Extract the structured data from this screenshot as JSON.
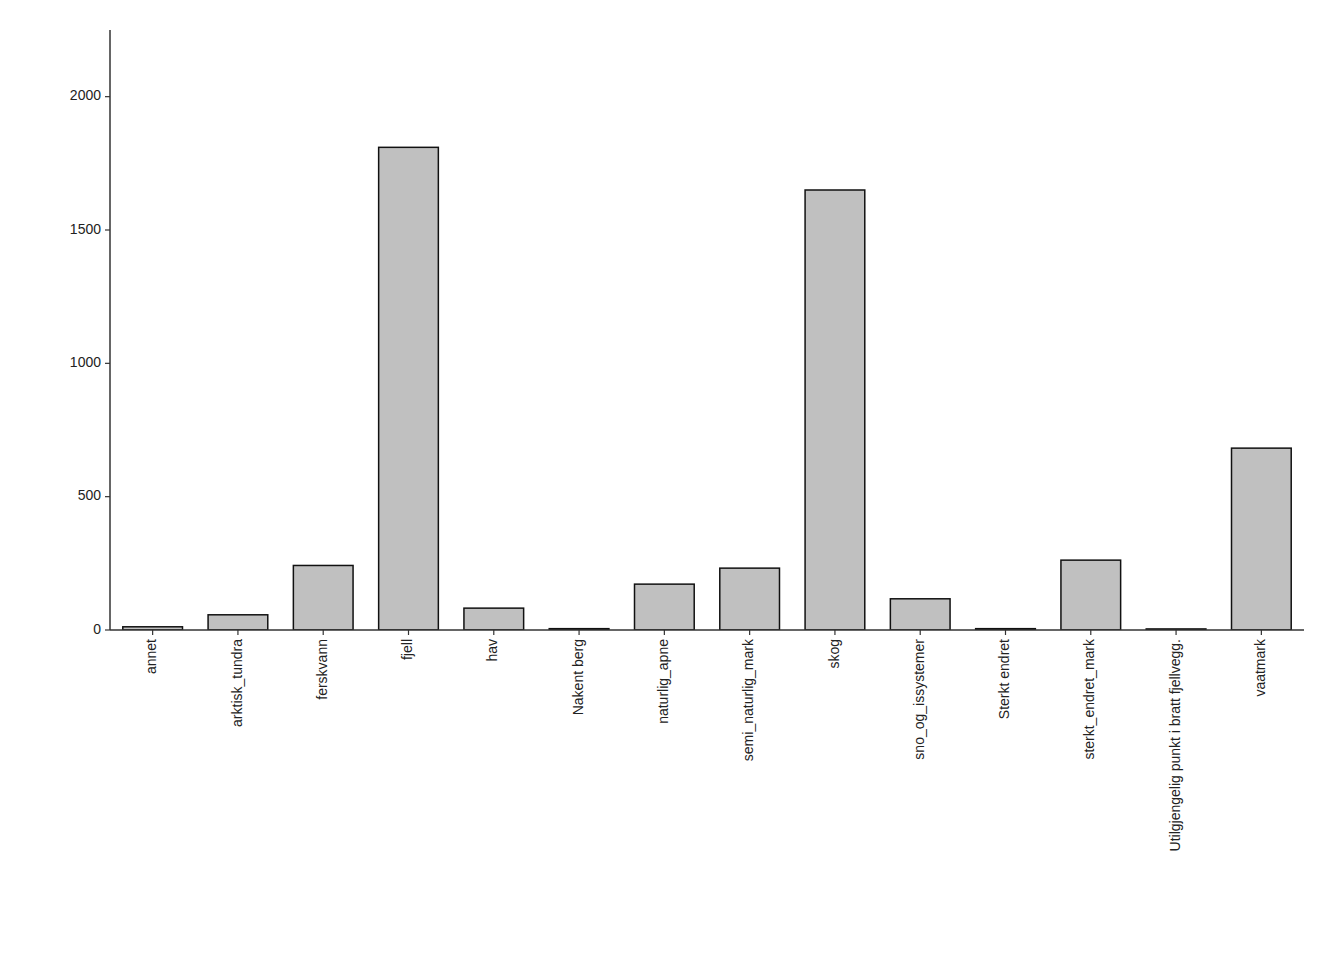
{
  "chart_data": {
    "type": "bar",
    "categories": [
      "annet",
      "arktisk_tundra",
      "ferskvann",
      "fjell",
      "hav",
      "Nakent berg",
      "naturlig_apne",
      "semi_naturlig_mark",
      "skog",
      "sno_og_issystemer",
      "Sterkt endret",
      "sterkt_endret_mark",
      "Utilgjengelig punkt i bratt fjellvegg.",
      "vaatmark"
    ],
    "values": [
      12,
      57,
      242,
      1810,
      82,
      5,
      172,
      232,
      1650,
      117,
      5,
      262,
      4,
      682
    ],
    "color": "#c0c0c0",
    "ylim": [
      0,
      2250
    ],
    "yticks": [
      0,
      500,
      1000,
      1500,
      2000
    ],
    "grid": false
  }
}
